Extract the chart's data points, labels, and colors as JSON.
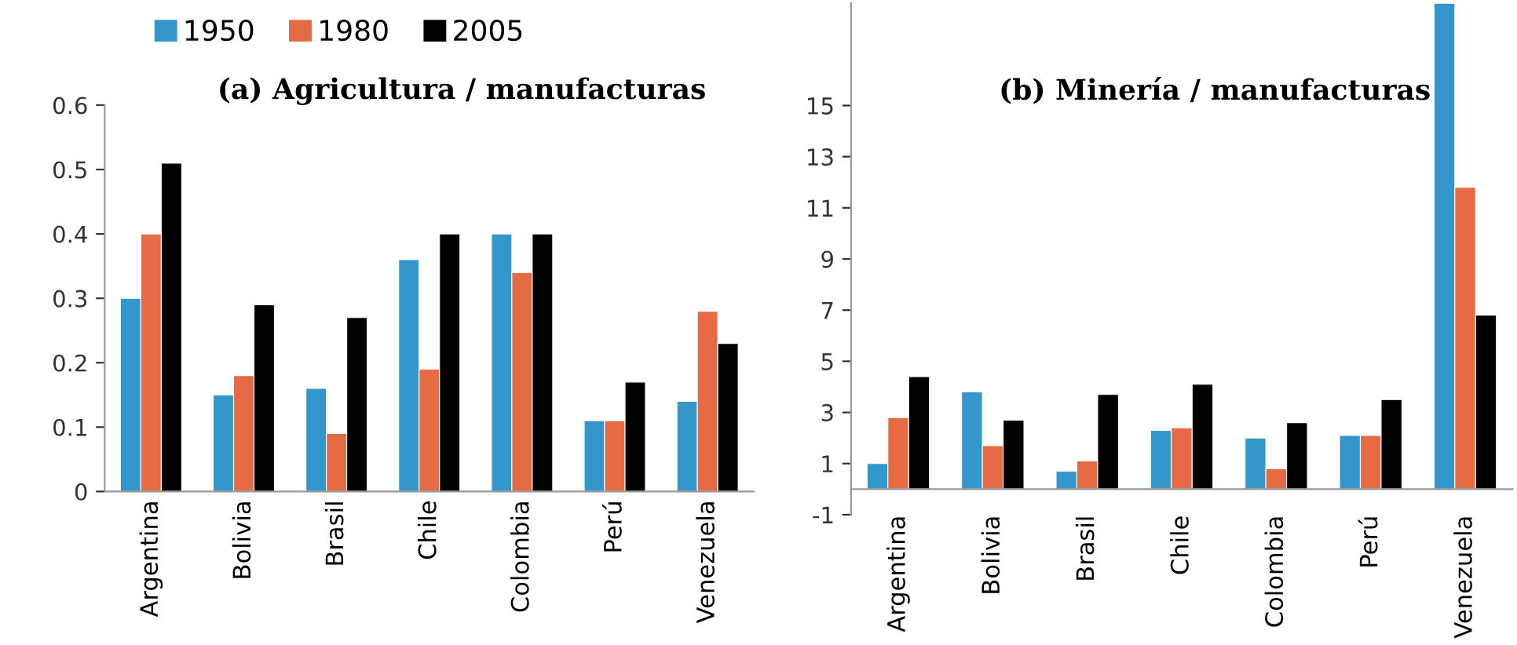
{
  "chart_data": [
    {
      "type": "bar",
      "title": "(a) Agricultura / manufacturas",
      "categories": [
        "Argentina",
        "Bolivia",
        "Brasil",
        "Chile",
        "Colombia",
        "Perú",
        "Venezuela"
      ],
      "series": [
        {
          "name": "1950",
          "color": "#3497cb",
          "values": [
            0.3,
            0.15,
            0.16,
            0.36,
            0.4,
            0.11,
            0.14
          ]
        },
        {
          "name": "1980",
          "color": "#e66a44",
          "values": [
            0.4,
            0.18,
            0.09,
            0.19,
            0.34,
            0.11,
            0.28
          ]
        },
        {
          "name": "2005",
          "color": "#000000",
          "values": [
            0.51,
            0.29,
            0.27,
            0.4,
            0.4,
            0.17,
            0.23
          ]
        }
      ],
      "ylim": [
        0,
        0.6
      ],
      "yticks": [
        0,
        0.1,
        0.2,
        0.3,
        0.4,
        0.5,
        0.6
      ],
      "grid": false,
      "legend": "top left"
    },
    {
      "type": "bar",
      "title": "(b) Minería / manufacturas",
      "categories": [
        "Argentina",
        "Bolivia",
        "Brasil",
        "Chile",
        "Colombia",
        "Perú",
        "Venezuela"
      ],
      "series": [
        {
          "name": "1950",
          "color": "#3497cb",
          "values": [
            1.0,
            3.8,
            0.7,
            2.3,
            2.0,
            2.1,
            19
          ]
        },
        {
          "name": "1980",
          "color": "#e66a44",
          "values": [
            2.8,
            1.7,
            1.1,
            2.4,
            0.8,
            2.1,
            11.8
          ]
        },
        {
          "name": "2005",
          "color": "#000000",
          "values": [
            4.4,
            2.7,
            3.7,
            4.1,
            2.6,
            3.5,
            6.8
          ]
        }
      ],
      "ylim": [
        -1,
        19
      ],
      "yticks": [
        -1,
        1,
        3,
        5,
        7,
        9,
        11,
        13,
        15
      ],
      "grid": false
    }
  ]
}
